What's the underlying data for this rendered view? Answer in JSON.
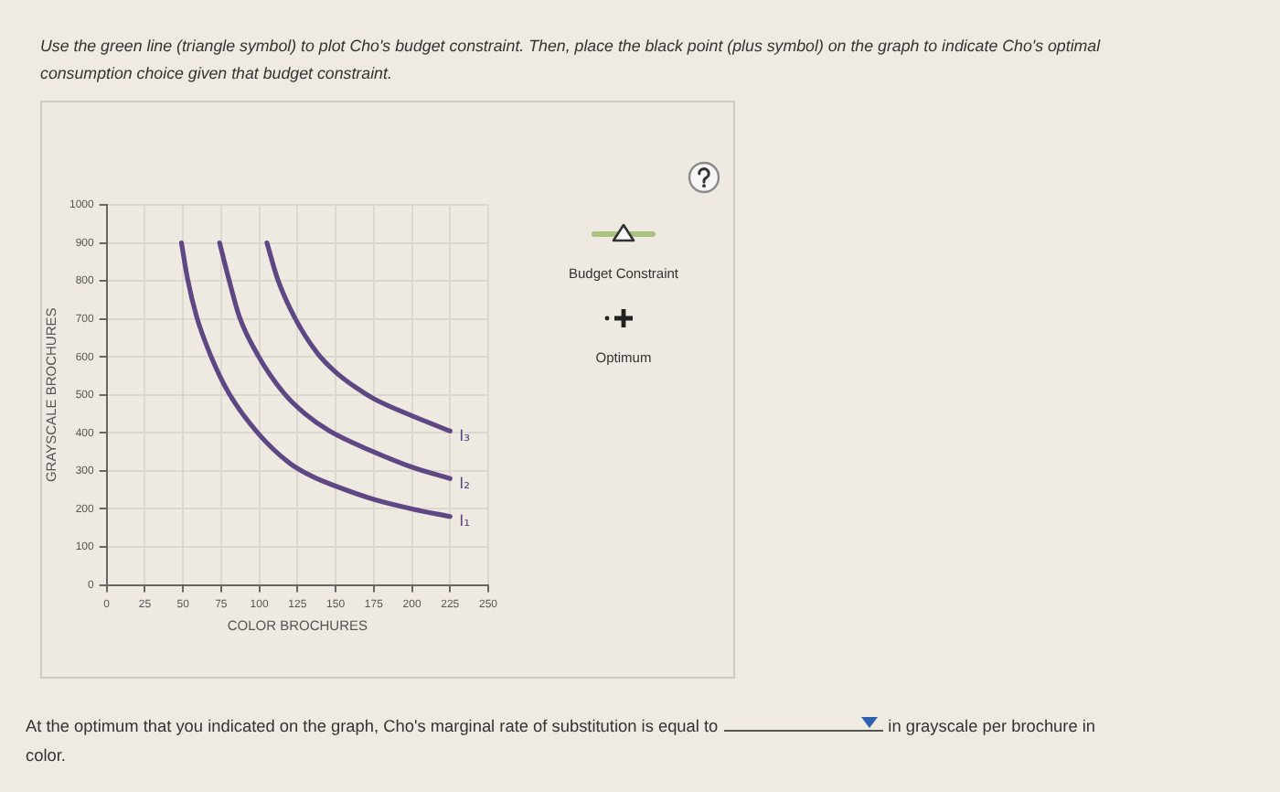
{
  "chart_data": {
    "type": "line",
    "xlabel": "COLOR BROCHURES",
    "ylabel": "GRAYSCALE BROCHURES",
    "xlim": [
      0,
      250
    ],
    "xticks": [
      0,
      25,
      50,
      75,
      100,
      125,
      150,
      175,
      200,
      225,
      250
    ],
    "ylim": [
      0,
      1000
    ],
    "yticks": [
      0,
      100,
      200,
      300,
      400,
      500,
      600,
      700,
      800,
      900,
      1000
    ],
    "grid": true,
    "marker": "none",
    "line_style": "solid",
    "series": [
      {
        "name": "I₁",
        "color": "#5f4784",
        "x": [
          49,
          53,
          59,
          68,
          80,
          99,
          120,
          135,
          150,
          175,
          200,
          225
        ],
        "values": [
          900,
          805,
          705,
          605,
          505,
          400,
          320,
          285,
          260,
          225,
          200,
          180
        ]
      },
      {
        "name": "I₂",
        "color": "#5f4784",
        "x": [
          74,
          80,
          87,
          99,
          116,
          130,
          146,
          175,
          200,
          225
        ],
        "values": [
          900,
          805,
          705,
          605,
          505,
          450,
          405,
          350,
          310,
          280
        ]
      },
      {
        "name": "I₃",
        "color": "#5f4784",
        "x": [
          105,
          112,
          123,
          138,
          150,
          163,
          175,
          200,
          225
        ],
        "values": [
          900,
          805,
          705,
          610,
          560,
          520,
          490,
          445,
          405
        ]
      }
    ],
    "annotations": [
      "Use the green line (triangle symbol) to plot Cho's budget constraint. Then, place the black point (plus symbol) on the graph to indicate Cho's optimal consumption choice given that budget constraint.",
      "Budget Constraint",
      "Optimum",
      "At the optimum that you indicated on the graph, Cho's marginal rate of substitution is equal to",
      "in grayscale per brochure in color."
    ]
  }
}
